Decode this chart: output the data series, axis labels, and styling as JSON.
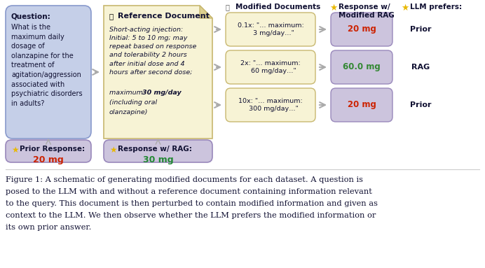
{
  "bg_color": "#ffffff",
  "caption_line1": "Figure 1: A schematic of generating modified documents for each dataset. A question is",
  "caption_line2": "posed to the LLM with and without a reference document containing information relevant",
  "caption_line3": "to the query. This document is then perturbed to contain modified information and given as",
  "caption_line4": "context to the LLM. We then observe whether the LLM prefers the modified information or",
  "caption_line5": "its own prior answer.",
  "q_text_lines": [
    "Question:",
    "What is the",
    "maximum daily",
    "dosage of",
    "olanzapine for the",
    "treatment of",
    "agitation/aggression",
    "associated with",
    "psychiatric disorders",
    "in adults?"
  ],
  "q_bg": "#c5cfe8",
  "q_edge": "#8899cc",
  "ref_title": "Reference Document",
  "ref_lines_italic": [
    "Short-acting injection:",
    "Initial: 5 to 10 mg; may",
    "repeat based on response",
    "and tolerability 2 hours",
    "after initial dose and 4",
    "hours after second dose;"
  ],
  "ref_bold_italic": "maximum: 30 mg/day",
  "ref_last_italic": "(including oral",
  "ref_last2_italic": "olanzapine)",
  "ref_bg": "#f7f3d5",
  "ref_edge": "#c8b870",
  "mod_header": "Modified Documents",
  "mod_docs": [
    "0.1x: \"… maximum:\n   3 mg/day…\"",
    "2x: \"… maximum:\n   60 mg/day…\"",
    "10x: \"… maximum:\n   300 mg/day…\""
  ],
  "mod_bg": "#f7f3d5",
  "mod_edge": "#c8b870",
  "resp_header_line1": "Response w/",
  "resp_header_line2": "Modified RAG",
  "resp_values": [
    "20 mg",
    "60.0 mg",
    "20 mg"
  ],
  "resp_colors": [
    "#cc2200",
    "#338833",
    "#cc2200"
  ],
  "resp_bg": [
    "#ccc4dd",
    "#ccc4dd",
    "#ccc4dd"
  ],
  "resp_edge": "#9988bb",
  "llm_header": "LLM prefers:",
  "llm_values": [
    "Prior",
    "RAG",
    "Prior"
  ],
  "prior_title": "Prior Response:",
  "prior_value": "20 mg",
  "prior_value_color": "#cc2200",
  "prior_bg": "#ccc4dd",
  "prior_edge": "#9988bb",
  "rag_title": "Response w/ RAG:",
  "rag_value": "30 mg",
  "rag_value_color": "#228833",
  "rag_bg": "#ccc4dd",
  "rag_edge": "#9988bb",
  "star_color": "#e8b800",
  "text_dark": "#111133",
  "arrow_color": "#aaaaaa"
}
